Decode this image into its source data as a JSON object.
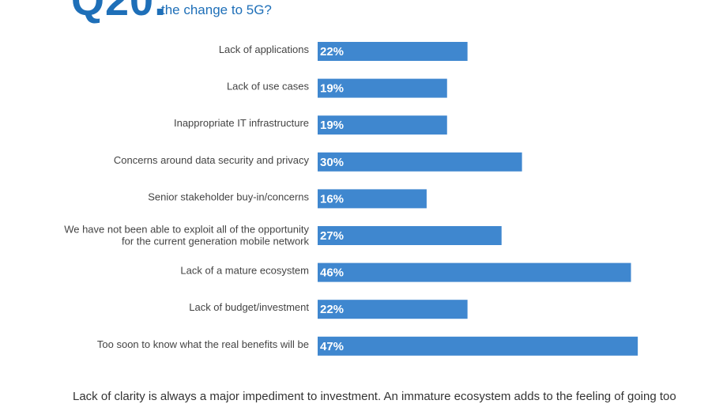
{
  "header": {
    "question_number": "Q20.",
    "question_text": "the change to 5G?"
  },
  "chart_data": {
    "type": "bar",
    "orientation": "horizontal",
    "categories": [
      [
        "Lack of applications"
      ],
      [
        "Lack of use cases"
      ],
      [
        "Inappropriate IT infrastructure"
      ],
      [
        "Concerns around data security and privacy"
      ],
      [
        "Senior stakeholder buy-in/concerns"
      ],
      [
        "We have not been able to exploit all of the opportunity",
        "for the current generation mobile network"
      ],
      [
        "Lack of a mature ecosystem"
      ],
      [
        "Lack of budget/investment"
      ],
      [
        "Too soon to know what the real benefits will be"
      ]
    ],
    "values": [
      22,
      19,
      19,
      30,
      16,
      27,
      46,
      22,
      47
    ],
    "value_labels": [
      "22%",
      "19%",
      "19%",
      "30%",
      "16%",
      "27%",
      "46%",
      "22%",
      "47%"
    ],
    "unit": "%",
    "bar_color": "#3f87cf",
    "grid": false,
    "legend": "none"
  },
  "footnote": "Lack of clarity is always a major impediment to investment. An immature ecosystem adds to the feeling of going too"
}
